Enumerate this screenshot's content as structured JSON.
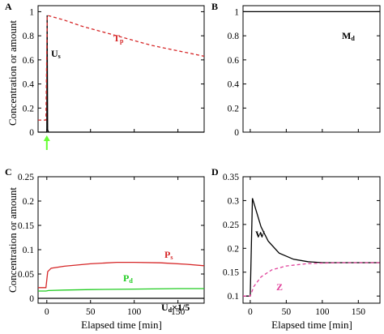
{
  "colors": {
    "black": "#000000",
    "red": "#d62728",
    "green": "#22cc22",
    "pink": "#e0409a",
    "green_arrow": "#66ff33"
  },
  "ylabel": "Concentration or amount",
  "xlabel": "Elapsed time [min]",
  "chart_data": [
    {
      "panel": "A",
      "type": "line",
      "ylim": [
        0,
        1.05
      ],
      "xlim": [
        -10,
        180
      ],
      "yticks": [
        "0",
        "0.2",
        "0.4",
        "0.6",
        "0.8",
        "1"
      ],
      "ytick_values": [
        0,
        0.2,
        0.4,
        0.6,
        0.8,
        1
      ],
      "xticks": [],
      "grid": false,
      "annotation": "green arrow at t = 0",
      "series": [
        {
          "name": "U",
          "name_sub": "s",
          "color": "#000000",
          "style": "solid",
          "points": [
            [
              -10,
              0
            ],
            [
              0,
              0
            ],
            [
              0.4,
              0.97
            ],
            [
              0.9,
              0.02
            ],
            [
              2,
              0
            ],
            [
              180,
              0
            ]
          ]
        },
        {
          "name": "T",
          "name_sub": "p",
          "color": "#d62728",
          "style": "dashed",
          "points": [
            [
              -10,
              0.1
            ],
            [
              -1,
              0.1
            ],
            [
              0.5,
              0.97
            ],
            [
              20,
              0.93
            ],
            [
              40,
              0.88
            ],
            [
              60,
              0.84
            ],
            [
              80,
              0.8
            ],
            [
              100,
              0.76
            ],
            [
              120,
              0.72
            ],
            [
              140,
              0.69
            ],
            [
              160,
              0.66
            ],
            [
              180,
              0.63
            ]
          ]
        }
      ]
    },
    {
      "panel": "B",
      "type": "line",
      "ylim": [
        0,
        1.05
      ],
      "xlim": [
        -10,
        180
      ],
      "yticks": [
        "0",
        "0.2",
        "0.4",
        "0.6",
        "0.8",
        "1"
      ],
      "ytick_values": [
        0,
        0.2,
        0.4,
        0.6,
        0.8,
        1
      ],
      "xticks": [],
      "grid": false,
      "series": [
        {
          "name": "M",
          "name_sub": "d",
          "color": "#000000",
          "style": "solid",
          "points": [
            [
              -10,
              1
            ],
            [
              180,
              1
            ]
          ]
        }
      ]
    },
    {
      "panel": "C",
      "type": "line",
      "ylim": [
        -0.01,
        0.25
      ],
      "xlim": [
        -10,
        180
      ],
      "yticks": [
        "0",
        "0.05",
        "0.1",
        "0.15",
        "0.2",
        "0.25"
      ],
      "ytick_values": [
        0,
        0.05,
        0.1,
        0.15,
        0.2,
        0.25
      ],
      "xticks": [
        "0",
        "50",
        "100",
        "150"
      ],
      "xtick_values": [
        0,
        50,
        100,
        150
      ],
      "grid": false,
      "series": [
        {
          "name": "P",
          "name_sub": "s",
          "color": "#d62728",
          "style": "solid",
          "points": [
            [
              -10,
              0.022
            ],
            [
              -1,
              0.022
            ],
            [
              1,
              0.055
            ],
            [
              5,
              0.062
            ],
            [
              20,
              0.066
            ],
            [
              50,
              0.071
            ],
            [
              80,
              0.074
            ],
            [
              100,
              0.074
            ],
            [
              130,
              0.073
            ],
            [
              160,
              0.07
            ],
            [
              180,
              0.067
            ]
          ]
        },
        {
          "name": "P",
          "name_sub": "d",
          "color": "#22cc22",
          "style": "solid",
          "points": [
            [
              -10,
              0.015
            ],
            [
              -1,
              0.015
            ],
            [
              2,
              0.016
            ],
            [
              20,
              0.017
            ],
            [
              50,
              0.018
            ],
            [
              100,
              0.019
            ],
            [
              150,
              0.02
            ],
            [
              180,
              0.02
            ]
          ]
        },
        {
          "name": "U",
          "name_sub": "d",
          "name_suffix": "×1/5",
          "color": "#000000",
          "style": "solid",
          "points": [
            [
              -10,
              0
            ],
            [
              180,
              0
            ]
          ]
        }
      ]
    },
    {
      "panel": "D",
      "type": "line",
      "ylim": [
        0.085,
        0.35
      ],
      "xlim": [
        -10,
        180
      ],
      "yticks": [
        "0.1",
        "0.15",
        "0.2",
        "0.25",
        "0.3",
        "0.35"
      ],
      "ytick_values": [
        0.1,
        0.15,
        0.2,
        0.25,
        0.3,
        0.35
      ],
      "xticks": [
        "0",
        "50",
        "100",
        "150"
      ],
      "xtick_values": [
        0,
        50,
        100,
        150
      ],
      "grid": false,
      "series": [
        {
          "name": "W",
          "color": "#000000",
          "style": "solid",
          "points": [
            [
              -10,
              0.1
            ],
            [
              0,
              0.1
            ],
            [
              3,
              0.305
            ],
            [
              8,
              0.28
            ],
            [
              15,
              0.245
            ],
            [
              25,
              0.215
            ],
            [
              40,
              0.19
            ],
            [
              60,
              0.177
            ],
            [
              80,
              0.172
            ],
            [
              100,
              0.17
            ],
            [
              140,
              0.17
            ],
            [
              180,
              0.17
            ]
          ]
        },
        {
          "name": "Z",
          "color": "#e0409a",
          "style": "dashed",
          "points": [
            [
              -10,
              0.1
            ],
            [
              0,
              0.1
            ],
            [
              5,
              0.12
            ],
            [
              15,
              0.14
            ],
            [
              30,
              0.155
            ],
            [
              50,
              0.163
            ],
            [
              80,
              0.168
            ],
            [
              120,
              0.17
            ],
            [
              180,
              0.17
            ]
          ]
        }
      ]
    }
  ]
}
